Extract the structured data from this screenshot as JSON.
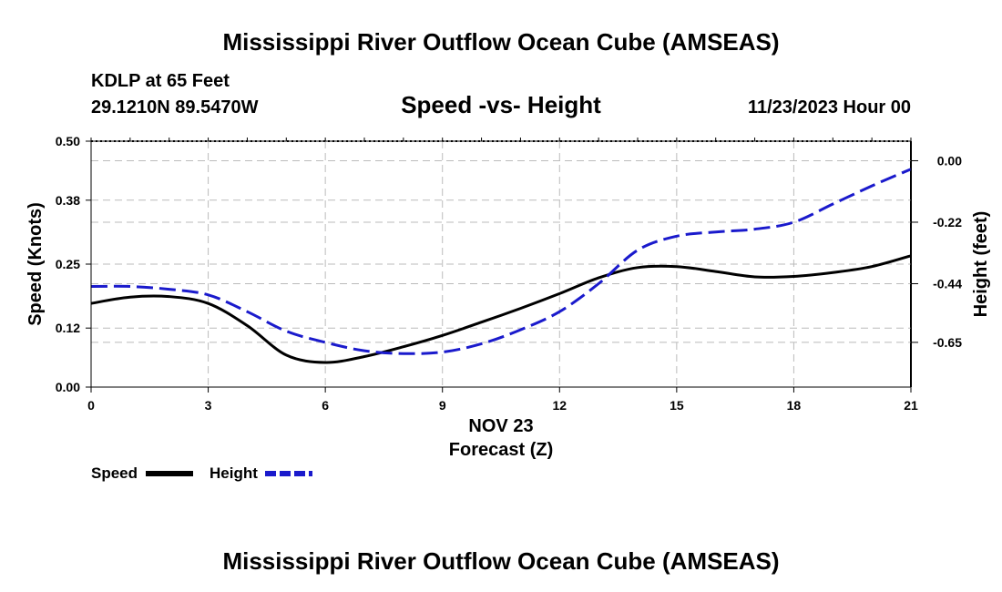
{
  "chart_data": {
    "type": "line",
    "title": "Mississippi River Outflow Ocean Cube (AMSEAS)",
    "station": "KDLP at 65 Feet",
    "coords": "29.1210N  89.5470W",
    "subtitle": "Speed -vs- Height",
    "datetime": "11/23/2023 Hour 00",
    "xlabel_date": "NOV 23",
    "xlabel": "Forecast (Z)",
    "ylabel_left": "Speed (Knots)",
    "ylabel_right": "Height (feet)",
    "xlim": [
      0,
      21
    ],
    "ylim_left": [
      0,
      0.5
    ],
    "ylim_right": [
      -0.81,
      0.07
    ],
    "x_ticks": [
      "0",
      "3",
      "6",
      "9",
      "12",
      "15",
      "18",
      "21"
    ],
    "y_left_ticks": [
      "0.00",
      "0.12",
      "0.25",
      "0.38",
      "0.50"
    ],
    "y_right_ticks": [
      "0.00",
      "-0.22",
      "-0.44",
      "-0.65"
    ],
    "series": [
      {
        "name": "Speed",
        "color": "#000000",
        "dash": "solid",
        "axis": "left",
        "x": [
          0,
          1,
          2,
          3,
          4,
          5,
          6,
          7,
          8,
          9,
          10,
          11,
          12,
          13,
          14,
          15,
          16,
          17,
          18,
          19,
          20,
          21
        ],
        "values": [
          0.17,
          0.183,
          0.184,
          0.17,
          0.125,
          0.065,
          0.05,
          0.062,
          0.082,
          0.105,
          0.132,
          0.16,
          0.19,
          0.222,
          0.243,
          0.245,
          0.235,
          0.224,
          0.225,
          0.233,
          0.245,
          0.267
        ]
      },
      {
        "name": "Height",
        "color": "#1a1acc",
        "dash": "dashed",
        "axis": "right",
        "x": [
          0,
          1,
          2,
          3,
          4,
          5,
          6,
          7,
          8,
          9,
          10,
          11,
          12,
          13,
          14,
          15,
          16,
          17,
          18,
          19,
          20,
          21
        ],
        "values": [
          -0.45,
          -0.45,
          -0.46,
          -0.48,
          -0.54,
          -0.61,
          -0.65,
          -0.68,
          -0.69,
          -0.685,
          -0.655,
          -0.605,
          -0.54,
          -0.44,
          -0.32,
          -0.27,
          -0.255,
          -0.245,
          -0.22,
          -0.155,
          -0.09,
          -0.03
        ]
      }
    ],
    "legend": [
      {
        "label": "Speed",
        "color": "#000000",
        "dash": "solid"
      },
      {
        "label": "Height",
        "color": "#1a1acc",
        "dash": "dashed"
      }
    ],
    "footer_title": "Mississippi River Outflow Ocean Cube (AMSEAS)"
  }
}
